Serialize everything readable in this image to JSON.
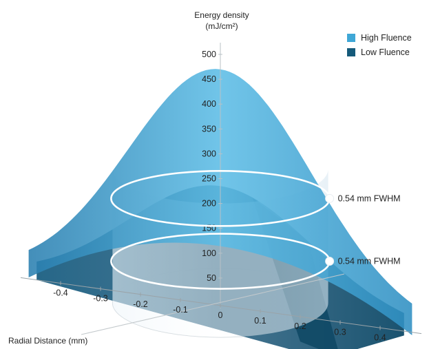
{
  "chart_data": {
    "type": "area",
    "ylabel_line1": "Energy density",
    "ylabel_line2": "(mJ/cm²)",
    "xlabel": "Radial Distance (mm)",
    "ylim": [
      0,
      500
    ],
    "xlim": [
      -0.45,
      0.45
    ],
    "y_ticks": [
      "50",
      "100",
      "150",
      "200",
      "250",
      "300",
      "350",
      "400",
      "450",
      "500"
    ],
    "x_ticks": [
      {
        "v": -0.4,
        "label": "-0.4"
      },
      {
        "v": -0.3,
        "label": "-0.3"
      },
      {
        "v": -0.2,
        "label": "-0.2"
      },
      {
        "v": -0.1,
        "label": "-0.1"
      },
      {
        "v": 0.0,
        "label": "0"
      },
      {
        "v": 0.1,
        "label": "0.1"
      },
      {
        "v": 0.2,
        "label": "0.2"
      },
      {
        "v": 0.3,
        "label": "0.3"
      },
      {
        "v": 0.4,
        "label": "0.4"
      }
    ],
    "series": [
      {
        "name": "High Fluence",
        "color": "#3fa7d6",
        "peak": 470,
        "fwhm_mm": 0.54
      },
      {
        "name": "Low Fluence",
        "color": "#155a7a",
        "peak": 235,
        "fwhm_mm": 0.54
      }
    ],
    "annotations": [
      {
        "text": "0.54 mm FWHM",
        "series": "High Fluence",
        "y": 235
      },
      {
        "text": "0.54 mm FWHM",
        "series": "Low Fluence",
        "y": 117
      }
    ],
    "grid": false,
    "legend_position": "top-right"
  }
}
